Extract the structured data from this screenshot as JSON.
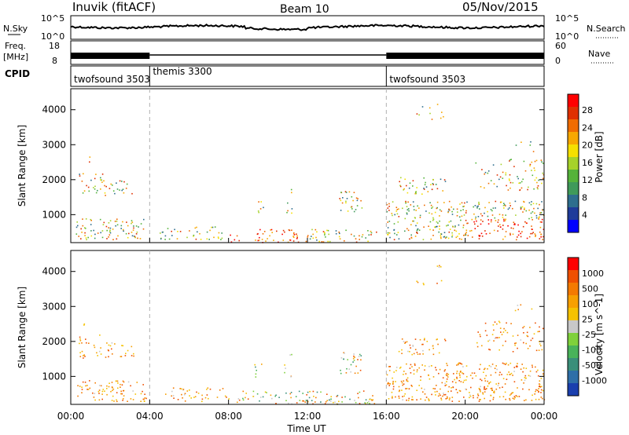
{
  "header": {
    "station": "Inuvik (fitACF)",
    "beam": "Beam 10",
    "date": "05/Nov/2015"
  },
  "left_labels": {
    "nsky": "N.Sky",
    "freq_top": "Freq.",
    "freq_unit": "[MHz]",
    "cpid": "CPID",
    "nsky_tick_hi": "10^5",
    "nsky_tick_lo": "10^0",
    "freq_tick_hi": "18",
    "freq_tick_lo": "8"
  },
  "right_labels": {
    "nsearch": "N.Search",
    "nave": "Nave",
    "nsearch_tick_hi": "10^5",
    "nsearch_tick_lo": "10^0",
    "nave_tick_hi": "60",
    "nave_tick_lo": "0"
  },
  "cpid_segments": [
    {
      "name": "twofsound 3503",
      "start_h": 0,
      "end_h": 4
    },
    {
      "name": "themis 3300",
      "start_h": 4,
      "end_h": 16
    },
    {
      "name": "twofsound 3503",
      "start_h": 16,
      "end_h": 24
    }
  ],
  "chart_data": [
    {
      "type": "heatmap",
      "panel": "power",
      "ylabel": "Slant Range [km]",
      "yticks": [
        1000,
        2000,
        3000,
        4000
      ],
      "ylim": [
        200,
        4600
      ],
      "xlim": [
        0,
        24
      ],
      "colorbar": {
        "label": "Power [dB]",
        "ticks": [
          "28",
          "24",
          "20",
          "16",
          "12",
          "8",
          "4"
        ],
        "colors": [
          "#0000ff",
          "#1f3b9a",
          "#2e6e8e",
          "#3f9a5a",
          "#55b33a",
          "#a6d22a",
          "#f5e000",
          "#f7a800",
          "#f06c00",
          "#e03000",
          "#ff0000"
        ]
      }
    },
    {
      "type": "heatmap",
      "panel": "velocity",
      "ylabel": "Slant Range [km]",
      "yticks": [
        1000,
        2000,
        3000,
        4000
      ],
      "ylim": [
        200,
        4600
      ],
      "xlim": [
        0,
        24
      ],
      "colorbar": {
        "label": "Velocity [m s^-1]",
        "ticks": [
          "1000",
          "500",
          "100",
          "25",
          "-25",
          "-100",
          "-500",
          "-1000"
        ],
        "colors": [
          "#1a3fae",
          "#2f6fa8",
          "#3a8f7a",
          "#49b35a",
          "#7fd13b",
          "#c8c8c8",
          "#f5c200",
          "#f7a000",
          "#f47a00",
          "#ef5000",
          "#ff0000"
        ]
      }
    }
  ],
  "x_axis": {
    "ticks": [
      "00:00",
      "04:00",
      "08:00",
      "12:00",
      "16:00",
      "20:00",
      "00:00"
    ],
    "label": "Time UT"
  }
}
